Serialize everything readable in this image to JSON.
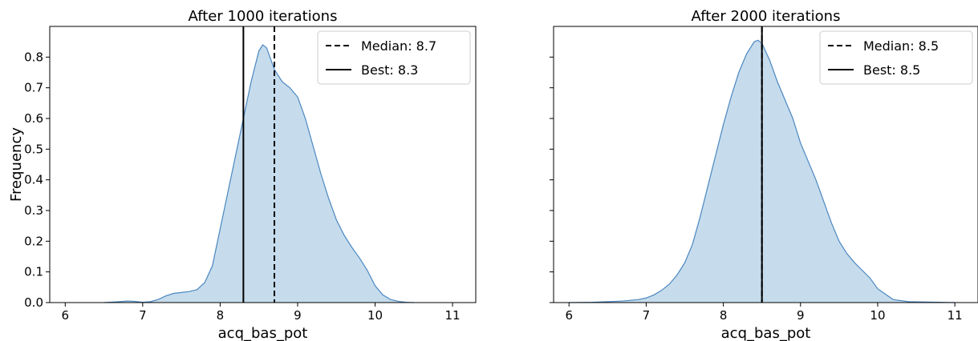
{
  "chart_data": [
    {
      "type": "area",
      "title": "After 1000 iterations",
      "xlabel": "acq_bas_pot",
      "ylabel": "Frequency",
      "xlim": [
        5.8,
        11.3
      ],
      "ylim": [
        0,
        0.9
      ],
      "xticks": [
        6,
        7,
        8,
        9,
        10,
        11
      ],
      "yticks": [
        0.0,
        0.1,
        0.2,
        0.3,
        0.4,
        0.5,
        0.6,
        0.7,
        0.8
      ],
      "x": [
        6.5,
        6.7,
        6.8,
        6.9,
        7.0,
        7.1,
        7.2,
        7.3,
        7.4,
        7.5,
        7.6,
        7.7,
        7.8,
        7.9,
        8.0,
        8.1,
        8.2,
        8.3,
        8.4,
        8.5,
        8.55,
        8.6,
        8.7,
        8.8,
        8.9,
        9.0,
        9.1,
        9.2,
        9.3,
        9.4,
        9.5,
        9.6,
        9.7,
        9.8,
        9.9,
        10.0,
        10.1,
        10.2,
        10.3,
        10.4,
        10.5
      ],
      "y": [
        0.0,
        0.003,
        0.005,
        0.004,
        0.001,
        0.003,
        0.01,
        0.022,
        0.03,
        0.033,
        0.036,
        0.042,
        0.065,
        0.12,
        0.24,
        0.36,
        0.48,
        0.6,
        0.72,
        0.82,
        0.84,
        0.83,
        0.76,
        0.72,
        0.7,
        0.67,
        0.6,
        0.51,
        0.42,
        0.34,
        0.27,
        0.22,
        0.18,
        0.145,
        0.105,
        0.055,
        0.025,
        0.01,
        0.004,
        0.001,
        0.0
      ],
      "vlines": [
        {
          "x": 8.7,
          "style": "dashed",
          "label": "Median: 8.7"
        },
        {
          "x": 8.3,
          "style": "solid",
          "label": "Best: 8.3"
        }
      ],
      "fill_color": "#c6dcec",
      "line_color": "#4a87c0",
      "grid": false,
      "legend": "top-right"
    },
    {
      "type": "area",
      "title": "After 2000 iterations",
      "xlabel": "acq_bas_pot",
      "ylabel": "",
      "xlim": [
        5.8,
        11.3
      ],
      "ylim": [
        0,
        0.9
      ],
      "xticks": [
        6,
        7,
        8,
        9,
        10,
        11
      ],
      "yticks": [
        0.0,
        0.1,
        0.2,
        0.3,
        0.4,
        0.5,
        0.6,
        0.7,
        0.8
      ],
      "show_ytick_labels": false,
      "x": [
        6.0,
        6.3,
        6.5,
        6.7,
        6.9,
        7.0,
        7.1,
        7.2,
        7.3,
        7.4,
        7.5,
        7.6,
        7.7,
        7.8,
        7.9,
        8.0,
        8.1,
        8.2,
        8.3,
        8.4,
        8.45,
        8.5,
        8.6,
        8.7,
        8.8,
        8.9,
        9.0,
        9.1,
        9.2,
        9.3,
        9.4,
        9.5,
        9.6,
        9.7,
        9.8,
        9.9,
        10.0,
        10.2,
        10.4,
        10.6,
        10.8,
        11.0
      ],
      "y": [
        0.0,
        0.001,
        0.003,
        0.005,
        0.01,
        0.015,
        0.025,
        0.04,
        0.06,
        0.09,
        0.13,
        0.19,
        0.28,
        0.38,
        0.48,
        0.58,
        0.67,
        0.75,
        0.81,
        0.85,
        0.855,
        0.845,
        0.79,
        0.72,
        0.66,
        0.6,
        0.52,
        0.46,
        0.4,
        0.33,
        0.26,
        0.2,
        0.16,
        0.13,
        0.105,
        0.08,
        0.045,
        0.01,
        0.003,
        0.002,
        0.001,
        0.0
      ],
      "vlines": [
        {
          "x": 8.5,
          "style": "dashed",
          "label": "Median: 8.5"
        },
        {
          "x": 8.5,
          "style": "solid",
          "label": "Best: 8.5"
        }
      ],
      "fill_color": "#c6dcec",
      "line_color": "#4a87c0",
      "grid": false,
      "legend": "top-right"
    }
  ]
}
